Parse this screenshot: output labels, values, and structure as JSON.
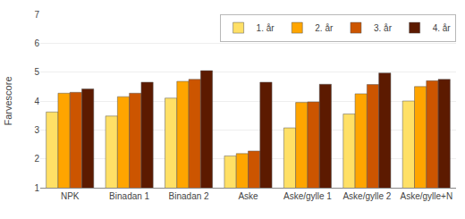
{
  "chart_data": {
    "type": "bar",
    "ylabel": "Farvescore",
    "categories": [
      "NPK",
      "Binadan 1",
      "Binadan 2",
      "Aske",
      "Aske/gylle 1",
      "Aske/gylle 2",
      "Aske/gylle+N"
    ],
    "series": [
      {
        "name": "1. år",
        "color": "#FFE066",
        "values": [
          3.62,
          3.48,
          4.1,
          2.1,
          3.07,
          3.55,
          4.0
        ]
      },
      {
        "name": "2. år",
        "color": "#FFA500",
        "values": [
          4.27,
          4.15,
          4.68,
          2.18,
          3.95,
          4.25,
          4.5
        ]
      },
      {
        "name": "3. år",
        "color": "#CC5500",
        "values": [
          4.3,
          4.27,
          4.75,
          2.27,
          3.97,
          4.57,
          4.7
        ]
      },
      {
        "name": "4. år",
        "color": "#5C1A00",
        "values": [
          4.42,
          4.65,
          5.05,
          4.65,
          4.58,
          4.97,
          4.75
        ]
      }
    ],
    "ylim": [
      1,
      7
    ],
    "yticks": [
      1,
      2,
      3,
      4,
      5,
      6,
      7
    ],
    "grid": true,
    "legend": "upper right"
  }
}
